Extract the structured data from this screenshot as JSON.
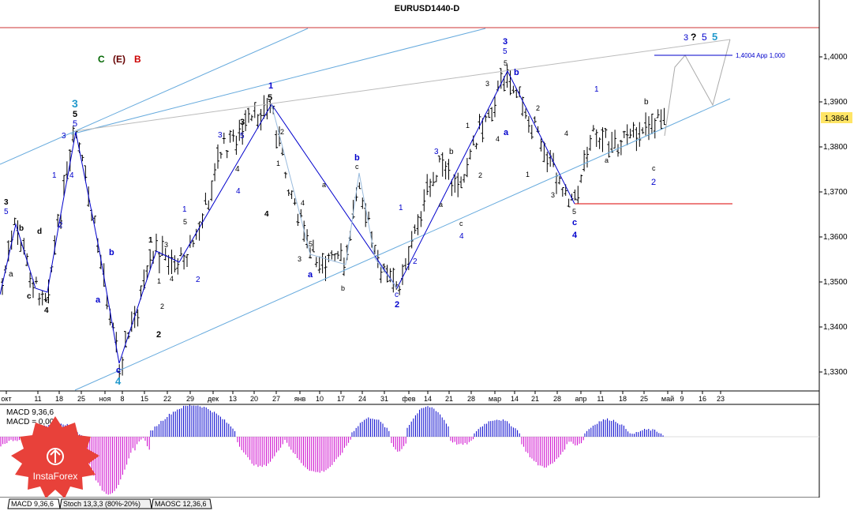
{
  "window": {
    "title": "EURUSD1440-D"
  },
  "price_axis": {
    "ticks": [
      "1,4000",
      "1,3900",
      "1,3800",
      "1,3700",
      "1,3600",
      "1,3500",
      "1,3400",
      "1,3300"
    ],
    "current_price": "1,3864"
  },
  "date_axis": {
    "ticks": [
      "окт",
      "11",
      "18",
      "25",
      "ноя",
      "8",
      "15",
      "22",
      "29",
      "дек",
      "13",
      "20",
      "27",
      "янв",
      "10",
      "17",
      "24",
      "31",
      "фев",
      "14",
      "21",
      "28",
      "мар",
      "14",
      "21",
      "28",
      "апр",
      "11",
      "18",
      "25",
      "май",
      "9",
      "16",
      "23"
    ]
  },
  "target_label": "1,4004 App 1,000",
  "top_legend": {
    "c": "C",
    "e": "(E)",
    "b": "B"
  },
  "top_right_wave": {
    "three": "3",
    "question": "?",
    "five_a": "5",
    "five_b": "5"
  },
  "wave_labels": {
    "l3_oct": "3",
    "l5_oct": "5",
    "lb_oct": "b",
    "ld_oct": "d",
    "la_oct": "a",
    "lc_oct": "c",
    "le_oct": "e",
    "l4_oct": "4",
    "l3_big": "3",
    "l5_top": "5",
    "l5_mid": "5",
    "l3_blue": "3",
    "l1_blue": "1",
    "l4_blue": "4",
    "l2_blue": "2",
    "lb_nov": "b",
    "la_nov": "a",
    "lc_nov": "c",
    "l4_nov": "4",
    "l1_nov": "1",
    "l3_nov": "3",
    "l1b_nov": "1",
    "l2_nov": "2",
    "l2b_nov": "2",
    "l4_nov2": "4",
    "l1_dec": "1",
    "l5_dec": "5",
    "l2_dec": "2",
    "l3_dec": "3",
    "l5_dec2": "5",
    "l3_dec2": "3",
    "l4_dec": "4",
    "l4_dec2": "4",
    "l1_jan": "1",
    "l5_jan": "5",
    "l2_jan": "2",
    "l1b_jan": "1",
    "l4_jan": "4",
    "l3_jan": "3",
    "l5b_jan": "5",
    "la_jan": "a",
    "la_line": "a",
    "lb_jan": "b",
    "lc_jan": "c",
    "lb2_jan": "b",
    "lc_feb": "c",
    "l2_feb": "2",
    "l1_feb": "1",
    "l2b_feb": "2",
    "l3_feb": "3",
    "lb_feb": "b",
    "la_feb": "a",
    "lc2_feb": "c",
    "l4_feb": "4",
    "l1b_feb": "1",
    "l2c_feb": "2",
    "l3_mar": "3",
    "l5_mar": "5",
    "l5b_mar": "5",
    "l3b_mar": "3",
    "l4_mar": "4",
    "la_mar": "a",
    "lb_mar": "b",
    "l2_mar": "2",
    "l1_mar": "1",
    "l4_apr": "4",
    "l3_apr": "3",
    "l5_apr": "5",
    "lc_apr": "c",
    "l4b_apr": "4",
    "l1_apr": "1",
    "la_apr": "a",
    "lb_apr": "b",
    "lc2_apr": "c",
    "l2_apr": "2"
  },
  "indicator_panel": {
    "line1": "MACD 9,36,6",
    "line2": "MACD = 0,00"
  },
  "bottom_tabs": [
    "MACD 9,36,6",
    "Stoch 13,3,3 (80%-20%)",
    "MAOSC 12,36,6"
  ],
  "logo": {
    "brand": "InstaForex"
  },
  "colors": {
    "blue_wave": "#0000cc",
    "channel_line": "#66aadd",
    "red_line": "#dd0000",
    "green_label": "#006600",
    "red_label": "#cc0000",
    "cyan_label": "#2299cc",
    "macd_positive": "#0000cc",
    "macd_negative": "#cc00cc",
    "current_price_bg": "#ffe566",
    "logo_red": "#e8413a"
  }
}
